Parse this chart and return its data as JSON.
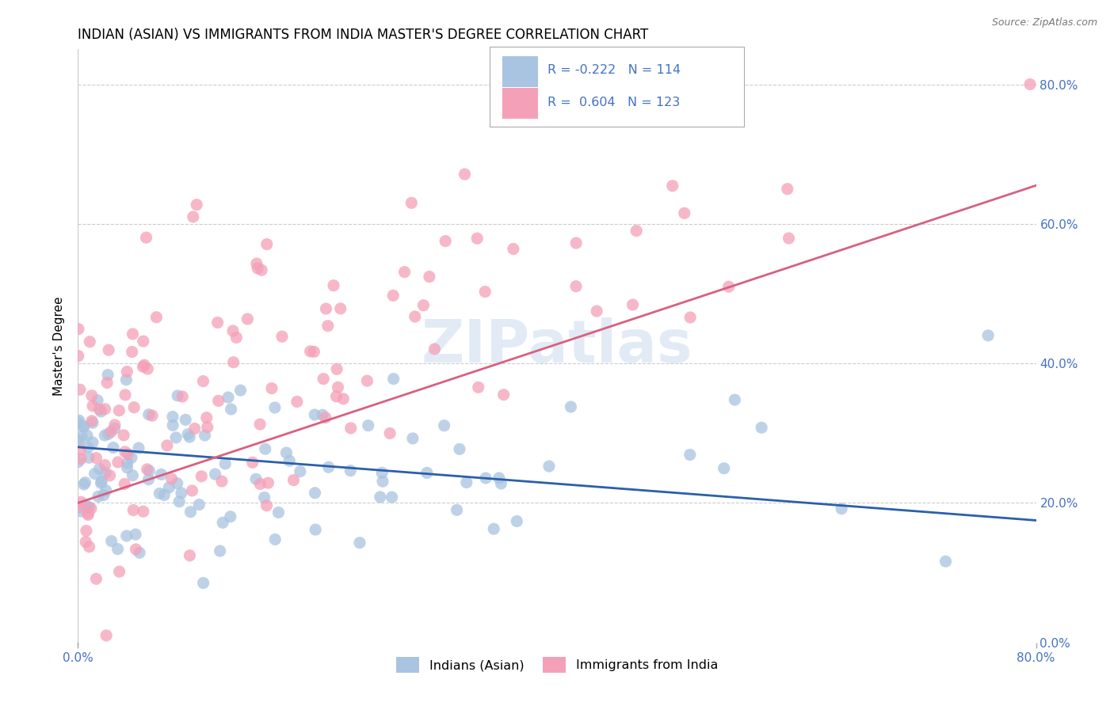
{
  "title": "INDIAN (ASIAN) VS IMMIGRANTS FROM INDIA MASTER'S DEGREE CORRELATION CHART",
  "source": "Source: ZipAtlas.com",
  "ylabel": "Master's Degree",
  "xmin": 0.0,
  "xmax": 0.8,
  "ymin": 0.0,
  "ymax": 0.85,
  "yticks": [
    0.0,
    0.2,
    0.4,
    0.6,
    0.8
  ],
  "ytick_labels": [
    "0.0%",
    "20.0%",
    "40.0%",
    "60.0%",
    "80.0%"
  ],
  "xtick_left": "0.0%",
  "xtick_right": "80.0%",
  "series1_label": "Indians (Asian)",
  "series2_label": "Immigrants from India",
  "series1_color": "#a8c4e0",
  "series2_color": "#f4a0b8",
  "series1_line_color": "#2b5fac",
  "series2_line_color": "#d96080",
  "R1": -0.222,
  "N1": 114,
  "R2": 0.604,
  "N2": 123,
  "title_fontsize": 12,
  "axis_fontsize": 11,
  "tick_fontsize": 11,
  "watermark": "ZIPatlas",
  "legend_R_color": "#4472c4",
  "grid_color": "#cccccc",
  "line1_x0": 0.0,
  "line1_y0": 0.28,
  "line1_x1": 0.8,
  "line1_y1": 0.175,
  "line2_x0": 0.0,
  "line2_y0": 0.2,
  "line2_x1": 0.8,
  "line2_y1": 0.655
}
